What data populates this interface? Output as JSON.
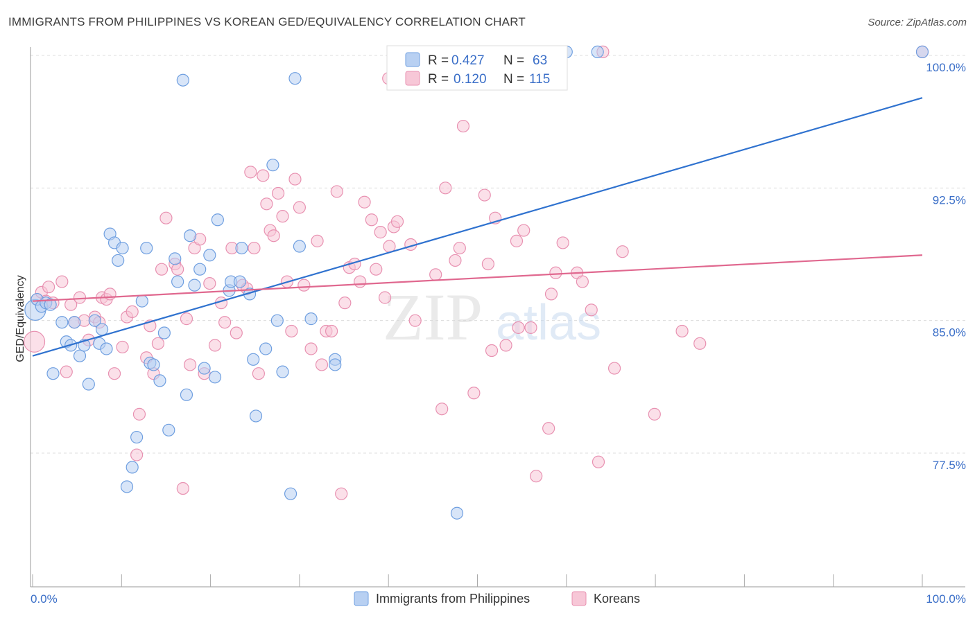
{
  "title": "IMMIGRANTS FROM PHILIPPINES VS KOREAN GED/EQUIVALENCY CORRELATION CHART",
  "source": "Source: ZipAtlas.com",
  "watermark": {
    "zip": "ZIP",
    "atlas": "atlas"
  },
  "colors": {
    "blue_fill": "#b8d0f2",
    "blue_stroke": "#6f9fe0",
    "blue_line": "#2f72cf",
    "pink_fill": "#f7c7d7",
    "pink_stroke": "#e891b1",
    "pink_line": "#e0688f",
    "grid": "#dcdcdc",
    "tick_text": "#3b6fc8"
  },
  "legend": {
    "r_label": "R =",
    "n_label": "N =",
    "rows": [
      {
        "r": "0.427",
        "n": "63"
      },
      {
        "r": "0.120",
        "n": "115"
      }
    ]
  },
  "chart_data": {
    "type": "scatter",
    "title": "IMMIGRANTS FROM PHILIPPINES VS KOREAN GED/EQUIVALENCY CORRELATION CHART",
    "xlabel": "",
    "ylabel": "GED/Equivalency",
    "xlim": [
      0,
      100
    ],
    "ylim": [
      70.5,
      101.0
    ],
    "x_tick_labels": [
      "0.0%",
      "100.0%"
    ],
    "y_ticks": [
      77.5,
      85.0,
      92.5,
      100.0
    ],
    "y_tick_labels": [
      "77.5%",
      "85.0%",
      "92.5%",
      "100.0%"
    ],
    "grid": true,
    "legend_position": "top-center",
    "series": [
      {
        "name": "Immigrants from Philippines",
        "trend": {
          "x": [
            0,
            100
          ],
          "y": [
            83.0,
            97.6
          ]
        },
        "points": [
          [
            0.3,
            85.6
          ],
          [
            0.5,
            86.2
          ],
          [
            1.0,
            85.8
          ],
          [
            1.5,
            86.0
          ],
          [
            2.0,
            85.9
          ],
          [
            2.3,
            82.0
          ],
          [
            3.3,
            84.9
          ],
          [
            3.8,
            83.8
          ],
          [
            4.3,
            83.6
          ],
          [
            4.7,
            84.9
          ],
          [
            5.3,
            83.0
          ],
          [
            5.8,
            83.6
          ],
          [
            6.3,
            81.4
          ],
          [
            7.0,
            85.0
          ],
          [
            7.5,
            83.7
          ],
          [
            7.8,
            84.5
          ],
          [
            8.3,
            83.4
          ],
          [
            8.7,
            89.9
          ],
          [
            9.2,
            89.4
          ],
          [
            9.6,
            88.4
          ],
          [
            10.1,
            89.1
          ],
          [
            10.6,
            75.6
          ],
          [
            11.2,
            76.7
          ],
          [
            11.7,
            78.4
          ],
          [
            12.3,
            86.1
          ],
          [
            12.8,
            89.1
          ],
          [
            13.2,
            82.6
          ],
          [
            13.6,
            82.5
          ],
          [
            14.3,
            81.6
          ],
          [
            14.8,
            84.3
          ],
          [
            15.3,
            78.8
          ],
          [
            16.0,
            88.5
          ],
          [
            16.3,
            87.2
          ],
          [
            16.9,
            98.6
          ],
          [
            17.3,
            80.8
          ],
          [
            17.7,
            89.8
          ],
          [
            18.2,
            87.0
          ],
          [
            18.8,
            87.9
          ],
          [
            19.3,
            82.3
          ],
          [
            19.9,
            88.7
          ],
          [
            20.5,
            81.8
          ],
          [
            20.8,
            90.7
          ],
          [
            22.1,
            86.7
          ],
          [
            22.3,
            87.2
          ],
          [
            23.3,
            87.2
          ],
          [
            23.5,
            89.1
          ],
          [
            24.4,
            86.5
          ],
          [
            24.8,
            82.8
          ],
          [
            25.1,
            79.6
          ],
          [
            26.2,
            83.4
          ],
          [
            27.0,
            93.8
          ],
          [
            27.5,
            85.0
          ],
          [
            28.1,
            82.1
          ],
          [
            29.0,
            75.2
          ],
          [
            29.5,
            98.7
          ],
          [
            30.0,
            89.2
          ],
          [
            31.3,
            85.1
          ],
          [
            34.0,
            82.8
          ],
          [
            34.0,
            82.5
          ],
          [
            47.7,
            74.1
          ],
          [
            60.0,
            100.2
          ],
          [
            63.5,
            100.2
          ],
          [
            100.0,
            100.2
          ]
        ]
      },
      {
        "name": "Koreans",
        "trend": {
          "x": [
            0,
            100
          ],
          "y": [
            86.1,
            88.7
          ]
        },
        "points": [
          [
            0.2,
            83.8
          ],
          [
            0.5,
            86.2
          ],
          [
            1.0,
            86.6
          ],
          [
            1.5,
            86.1
          ],
          [
            1.8,
            86.9
          ],
          [
            2.3,
            86.0
          ],
          [
            3.3,
            87.2
          ],
          [
            3.8,
            82.1
          ],
          [
            4.3,
            85.9
          ],
          [
            4.7,
            84.9
          ],
          [
            5.3,
            86.3
          ],
          [
            5.8,
            85.0
          ],
          [
            6.3,
            83.9
          ],
          [
            7.0,
            85.2
          ],
          [
            7.5,
            84.9
          ],
          [
            7.8,
            86.3
          ],
          [
            8.3,
            86.2
          ],
          [
            8.7,
            86.5
          ],
          [
            9.2,
            82.0
          ],
          [
            10.1,
            83.5
          ],
          [
            10.6,
            85.2
          ],
          [
            11.2,
            85.5
          ],
          [
            11.7,
            77.4
          ],
          [
            12.0,
            79.7
          ],
          [
            12.8,
            82.9
          ],
          [
            13.2,
            84.7
          ],
          [
            13.6,
            82.0
          ],
          [
            14.1,
            83.7
          ],
          [
            14.5,
            87.9
          ],
          [
            15.0,
            90.8
          ],
          [
            16.0,
            88.2
          ],
          [
            16.3,
            87.9
          ],
          [
            16.9,
            75.5
          ],
          [
            17.3,
            85.1
          ],
          [
            17.7,
            82.5
          ],
          [
            18.2,
            89.1
          ],
          [
            18.8,
            89.6
          ],
          [
            19.3,
            82.0
          ],
          [
            19.9,
            87.1
          ],
          [
            20.5,
            83.6
          ],
          [
            21.2,
            86.0
          ],
          [
            21.6,
            84.9
          ],
          [
            22.4,
            89.1
          ],
          [
            22.9,
            84.3
          ],
          [
            23.6,
            87.0
          ],
          [
            24.1,
            86.8
          ],
          [
            24.5,
            93.4
          ],
          [
            24.9,
            89.1
          ],
          [
            25.4,
            82.0
          ],
          [
            25.9,
            93.2
          ],
          [
            26.3,
            91.6
          ],
          [
            26.7,
            90.1
          ],
          [
            27.1,
            89.8
          ],
          [
            27.6,
            92.2
          ],
          [
            28.1,
            90.9
          ],
          [
            28.6,
            87.2
          ],
          [
            29.1,
            84.4
          ],
          [
            29.5,
            93.0
          ],
          [
            30.0,
            91.4
          ],
          [
            30.5,
            87.0
          ],
          [
            31.3,
            83.4
          ],
          [
            32.0,
            89.5
          ],
          [
            32.5,
            82.5
          ],
          [
            33.0,
            84.4
          ],
          [
            33.6,
            84.4
          ],
          [
            34.2,
            92.3
          ],
          [
            34.7,
            75.2
          ],
          [
            35.1,
            86.0
          ],
          [
            35.6,
            88.0
          ],
          [
            36.2,
            88.2
          ],
          [
            36.8,
            87.2
          ],
          [
            37.3,
            91.7
          ],
          [
            38.1,
            90.7
          ],
          [
            38.6,
            87.9
          ],
          [
            39.1,
            90.0
          ],
          [
            39.6,
            86.3
          ],
          [
            40.1,
            89.2
          ],
          [
            40.6,
            90.3
          ],
          [
            41.0,
            90.6
          ],
          [
            42.5,
            89.3
          ],
          [
            43.0,
            85.0
          ],
          [
            45.3,
            87.6
          ],
          [
            46.0,
            80.0
          ],
          [
            46.4,
            92.5
          ],
          [
            47.5,
            88.4
          ],
          [
            48.0,
            89.1
          ],
          [
            48.4,
            96.0
          ],
          [
            49.6,
            80.9
          ],
          [
            50.8,
            92.1
          ],
          [
            51.2,
            88.2
          ],
          [
            51.6,
            83.3
          ],
          [
            52.0,
            90.8
          ],
          [
            53.2,
            83.6
          ],
          [
            54.4,
            89.5
          ],
          [
            54.6,
            84.6
          ],
          [
            55.2,
            90.1
          ],
          [
            56.0,
            84.6
          ],
          [
            56.6,
            76.2
          ],
          [
            58.0,
            78.9
          ],
          [
            58.3,
            86.5
          ],
          [
            58.8,
            87.7
          ],
          [
            59.6,
            89.4
          ],
          [
            61.2,
            87.7
          ],
          [
            61.8,
            87.2
          ],
          [
            62.8,
            85.6
          ],
          [
            63.6,
            77.0
          ],
          [
            65.4,
            82.3
          ],
          [
            66.3,
            88.9
          ],
          [
            69.9,
            79.7
          ],
          [
            73.0,
            84.4
          ],
          [
            75.0,
            83.7
          ],
          [
            41.0,
            100.2
          ],
          [
            40.0,
            98.7
          ],
          [
            64.1,
            100.2
          ],
          [
            100.0,
            100.2
          ]
        ]
      }
    ]
  },
  "bottom_legend": [
    {
      "label": "Immigrants from Philippines"
    },
    {
      "label": "Koreans"
    }
  ]
}
